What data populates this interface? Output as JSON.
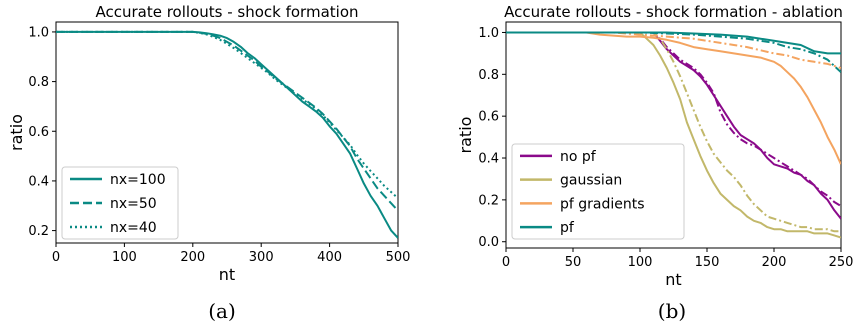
{
  "chart_data": [
    {
      "type": "line",
      "title": "Accurate rollouts - shock formation",
      "xlabel": "nt",
      "ylabel": "ratio",
      "xlim": [
        0,
        500
      ],
      "ylim": [
        0.15,
        1.04
      ],
      "xticks": [
        "0",
        "100",
        "200",
        "300",
        "400",
        "500"
      ],
      "yticks": [
        "0.2",
        "0.4",
        "0.6",
        "0.8",
        "1.0"
      ],
      "legend_position": "lower-left",
      "caption": "(a)",
      "series": [
        {
          "name": "nx=100",
          "style": "solid",
          "color": "#0a8a84",
          "x": [
            0,
            200,
            210,
            220,
            230,
            240,
            250,
            260,
            270,
            280,
            290,
            300,
            310,
            320,
            330,
            340,
            350,
            360,
            370,
            380,
            390,
            400,
            410,
            420,
            430,
            440,
            450,
            460,
            470,
            480,
            490,
            500
          ],
          "y": [
            1.0,
            1.0,
            0.998,
            0.995,
            0.99,
            0.985,
            0.975,
            0.96,
            0.94,
            0.915,
            0.895,
            0.87,
            0.845,
            0.82,
            0.795,
            0.77,
            0.745,
            0.72,
            0.7,
            0.68,
            0.655,
            0.62,
            0.59,
            0.55,
            0.51,
            0.45,
            0.39,
            0.34,
            0.3,
            0.25,
            0.2,
            0.17
          ]
        },
        {
          "name": "nx=50",
          "style": "dashed",
          "color": "#0a8a84",
          "x": [
            0,
            200,
            210,
            220,
            230,
            240,
            250,
            260,
            270,
            280,
            290,
            300,
            310,
            320,
            330,
            340,
            350,
            360,
            370,
            380,
            390,
            400,
            410,
            420,
            430,
            440,
            450,
            460,
            470,
            480,
            490,
            500
          ],
          "y": [
            1.0,
            1.0,
            0.997,
            0.992,
            0.985,
            0.975,
            0.96,
            0.945,
            0.925,
            0.905,
            0.885,
            0.86,
            0.84,
            0.815,
            0.795,
            0.775,
            0.755,
            0.735,
            0.715,
            0.695,
            0.67,
            0.64,
            0.61,
            0.575,
            0.54,
            0.49,
            0.45,
            0.41,
            0.37,
            0.34,
            0.31,
            0.28
          ]
        },
        {
          "name": "nx=40",
          "style": "dotted",
          "color": "#0a8a84",
          "x": [
            0,
            200,
            210,
            220,
            230,
            240,
            250,
            260,
            270,
            280,
            290,
            300,
            310,
            320,
            330,
            340,
            350,
            360,
            370,
            380,
            390,
            400,
            410,
            420,
            430,
            440,
            450,
            460,
            470,
            480,
            490,
            500
          ],
          "y": [
            1.0,
            1.0,
            0.996,
            0.99,
            0.98,
            0.968,
            0.952,
            0.935,
            0.915,
            0.895,
            0.875,
            0.855,
            0.835,
            0.81,
            0.79,
            0.77,
            0.75,
            0.73,
            0.71,
            0.69,
            0.665,
            0.635,
            0.605,
            0.575,
            0.545,
            0.505,
            0.47,
            0.44,
            0.41,
            0.38,
            0.355,
            0.33
          ]
        }
      ]
    },
    {
      "type": "line",
      "title": "Accurate rollouts - shock formation - ablation",
      "xlabel": "nt",
      "ylabel": "ratio",
      "xlim": [
        0,
        250
      ],
      "ylim": [
        -0.03,
        1.05
      ],
      "xticks": [
        "0",
        "50",
        "100",
        "150",
        "200",
        "250"
      ],
      "yticks": [
        "0.0",
        "0.2",
        "0.4",
        "0.6",
        "0.8",
        "1.0"
      ],
      "legend_position": "lower-left",
      "caption": "(b)",
      "series": [
        {
          "name": "no pf",
          "style": "solid",
          "color": "#8b0a8b",
          "x": [
            0,
            110,
            115,
            120,
            125,
            130,
            135,
            140,
            145,
            150,
            155,
            160,
            165,
            170,
            175,
            180,
            185,
            190,
            195,
            200,
            205,
            210,
            215,
            220,
            225,
            230,
            235,
            240,
            245,
            250
          ],
          "y": [
            1.0,
            1.0,
            0.96,
            0.92,
            0.89,
            0.86,
            0.84,
            0.82,
            0.79,
            0.75,
            0.7,
            0.65,
            0.6,
            0.55,
            0.51,
            0.49,
            0.47,
            0.44,
            0.4,
            0.37,
            0.36,
            0.35,
            0.33,
            0.32,
            0.29,
            0.27,
            0.23,
            0.2,
            0.15,
            0.11
          ]
        },
        {
          "name": "",
          "style": "dashdot",
          "color": "#8b0a8b",
          "x": [
            0,
            110,
            115,
            120,
            125,
            130,
            135,
            140,
            145,
            150,
            155,
            160,
            165,
            170,
            175,
            180,
            185,
            190,
            195,
            200,
            205,
            210,
            215,
            220,
            225,
            230,
            235,
            240,
            245,
            250
          ],
          "y": [
            1.0,
            1.0,
            0.97,
            0.93,
            0.9,
            0.87,
            0.85,
            0.83,
            0.8,
            0.76,
            0.71,
            0.62,
            0.56,
            0.52,
            0.49,
            0.47,
            0.46,
            0.44,
            0.42,
            0.4,
            0.38,
            0.36,
            0.34,
            0.32,
            0.3,
            0.27,
            0.24,
            0.22,
            0.19,
            0.17
          ]
        },
        {
          "name": "gaussian",
          "style": "solid",
          "color": "#c2b86a",
          "x": [
            0,
            100,
            105,
            110,
            115,
            120,
            125,
            130,
            135,
            140,
            145,
            150,
            155,
            160,
            165,
            170,
            175,
            180,
            185,
            190,
            195,
            200,
            205,
            210,
            215,
            220,
            225,
            230,
            235,
            240,
            245,
            250
          ],
          "y": [
            1.0,
            1.0,
            0.97,
            0.94,
            0.89,
            0.83,
            0.76,
            0.68,
            0.57,
            0.49,
            0.41,
            0.34,
            0.28,
            0.23,
            0.2,
            0.17,
            0.15,
            0.12,
            0.1,
            0.09,
            0.07,
            0.06,
            0.06,
            0.05,
            0.05,
            0.05,
            0.05,
            0.04,
            0.04,
            0.04,
            0.03,
            0.02
          ]
        },
        {
          "name": "",
          "style": "dashdot",
          "color": "#c2b86a",
          "x": [
            0,
            110,
            115,
            120,
            125,
            130,
            135,
            140,
            145,
            150,
            155,
            160,
            165,
            170,
            175,
            180,
            185,
            190,
            195,
            200,
            205,
            210,
            215,
            220,
            225,
            230,
            235,
            240,
            245,
            250
          ],
          "y": [
            1.0,
            1.0,
            0.97,
            0.92,
            0.86,
            0.79,
            0.71,
            0.63,
            0.55,
            0.48,
            0.42,
            0.38,
            0.34,
            0.31,
            0.27,
            0.22,
            0.18,
            0.15,
            0.12,
            0.11,
            0.1,
            0.09,
            0.08,
            0.07,
            0.07,
            0.06,
            0.06,
            0.06,
            0.05,
            0.05
          ]
        },
        {
          "name": "pf gradients",
          "style": "solid",
          "color": "#f4a460",
          "x": [
            0,
            60,
            70,
            80,
            90,
            100,
            110,
            120,
            130,
            140,
            150,
            160,
            170,
            180,
            190,
            200,
            205,
            210,
            215,
            220,
            225,
            230,
            235,
            240,
            245,
            250
          ],
          "y": [
            1.0,
            1.0,
            0.99,
            0.985,
            0.98,
            0.98,
            0.975,
            0.965,
            0.95,
            0.93,
            0.92,
            0.91,
            0.9,
            0.89,
            0.88,
            0.86,
            0.84,
            0.81,
            0.78,
            0.74,
            0.69,
            0.63,
            0.57,
            0.5,
            0.44,
            0.37
          ]
        },
        {
          "name": "",
          "style": "dashdot",
          "color": "#f4a460",
          "x": [
            0,
            80,
            90,
            100,
            110,
            120,
            130,
            140,
            150,
            160,
            170,
            180,
            190,
            200,
            210,
            220,
            230,
            240,
            250
          ],
          "y": [
            1.0,
            1.0,
            0.995,
            0.99,
            0.985,
            0.98,
            0.975,
            0.97,
            0.96,
            0.95,
            0.94,
            0.93,
            0.915,
            0.9,
            0.89,
            0.87,
            0.86,
            0.85,
            0.83
          ]
        },
        {
          "name": "pf",
          "style": "solid",
          "color": "#0a8a84",
          "x": [
            0,
            120,
            140,
            160,
            170,
            180,
            190,
            200,
            210,
            220,
            230,
            240,
            250
          ],
          "y": [
            1.0,
            1.0,
            0.995,
            0.99,
            0.985,
            0.98,
            0.97,
            0.96,
            0.95,
            0.94,
            0.91,
            0.9,
            0.9
          ]
        },
        {
          "name": "",
          "style": "dashdot",
          "color": "#0a8a84",
          "x": [
            0,
            100,
            120,
            140,
            160,
            180,
            200,
            210,
            220,
            230,
            240,
            250
          ],
          "y": [
            1.0,
            1.0,
            0.995,
            0.99,
            0.98,
            0.97,
            0.95,
            0.93,
            0.92,
            0.9,
            0.87,
            0.81
          ]
        }
      ]
    }
  ]
}
